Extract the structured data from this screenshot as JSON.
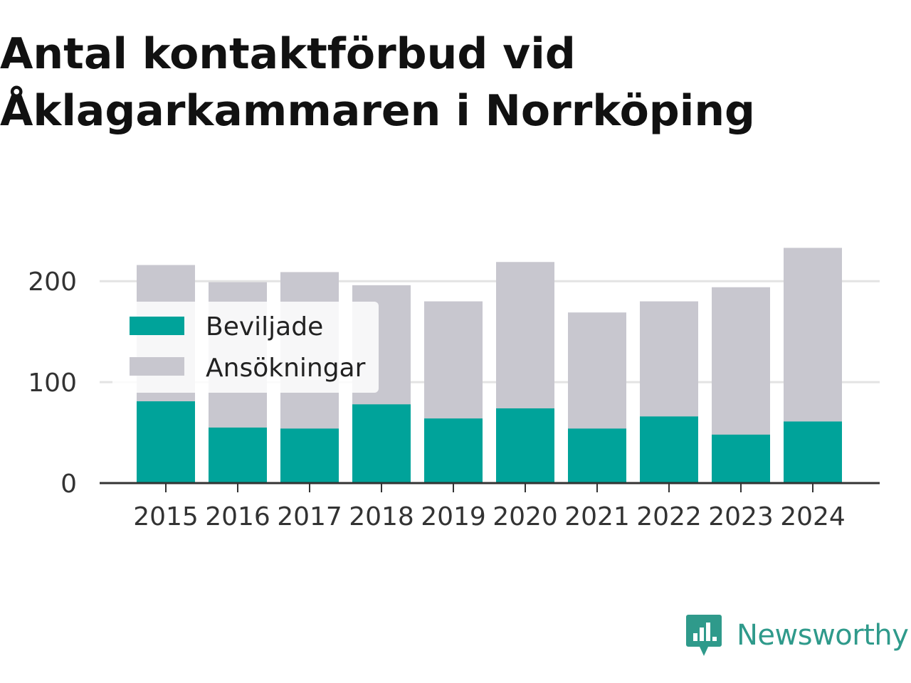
{
  "title": "Antal kontaktförbud vid Åklagarkammaren i Norrköping",
  "brand": {
    "name": "Newsworthy",
    "color": "#2f9a8b"
  },
  "colors": {
    "beviljade": "#00a39a",
    "ansokningar": "#c8c7cf"
  },
  "chart_data": {
    "type": "bar",
    "stacked": false,
    "title": "Antal kontaktförbud vid Åklagarkammaren i Norrköping",
    "xlabel": "",
    "ylabel": "",
    "categories": [
      "2015",
      "2016",
      "2017",
      "2018",
      "2019",
      "2020",
      "2021",
      "2022",
      "2023",
      "2024"
    ],
    "series": [
      {
        "name": "Ansökningar",
        "values": [
          216,
          199,
          209,
          196,
          180,
          219,
          169,
          180,
          194,
          233
        ]
      },
      {
        "name": "Beviljade",
        "values": [
          81,
          55,
          54,
          78,
          64,
          74,
          54,
          66,
          48,
          61
        ]
      }
    ],
    "ylim": [
      0,
      240
    ],
    "yticks": [
      0,
      100,
      200
    ],
    "ytick_labels": [
      "0",
      "100",
      "200"
    ],
    "grid": true,
    "legend": {
      "position": "top-left",
      "entries": [
        "Beviljade",
        "Ansökningar"
      ]
    }
  }
}
